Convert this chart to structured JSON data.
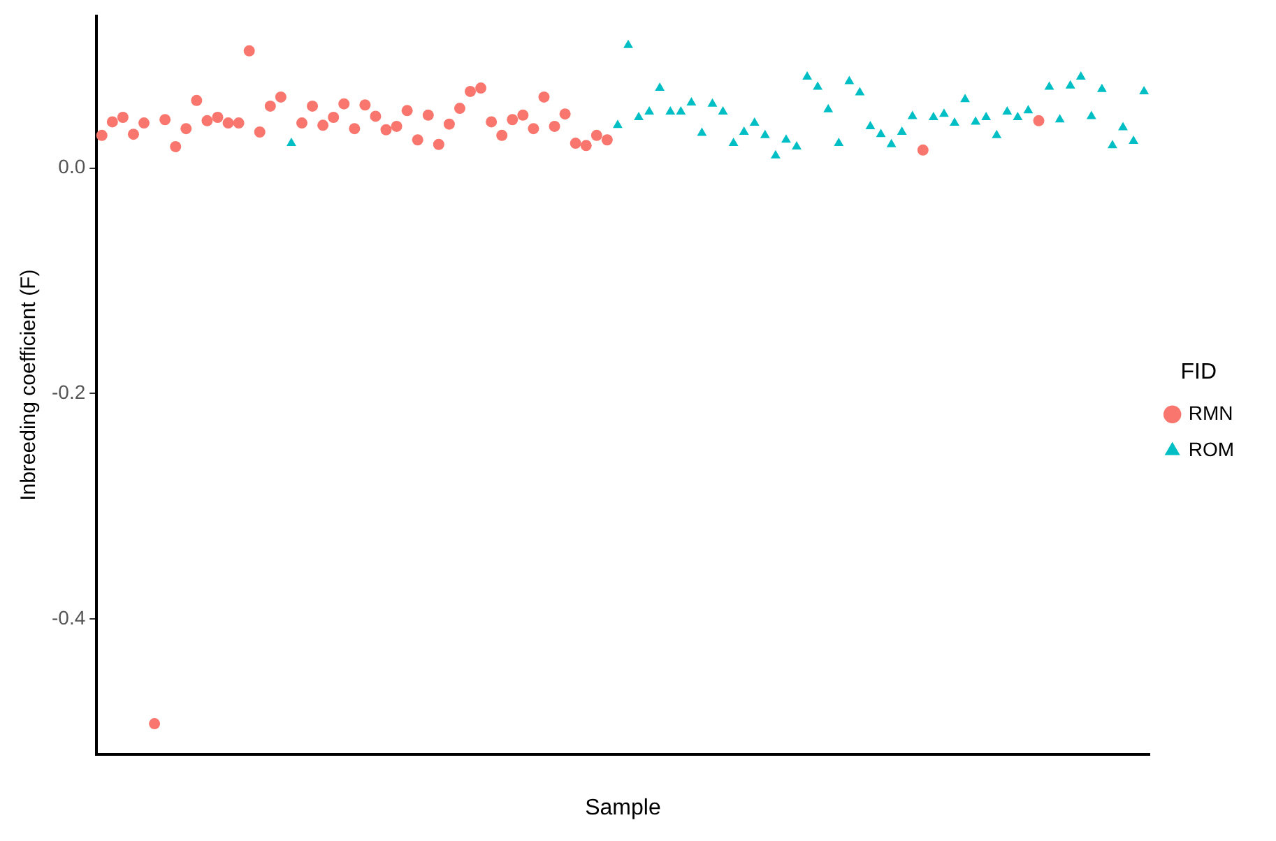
{
  "chart_data": {
    "type": "scatter",
    "xlabel": "Sample",
    "ylabel": "Inbreeding coefficient (F)",
    "legend_title": "FID",
    "legend": "right",
    "grid": false,
    "tick_labels": "y",
    "categories": [
      null,
      null,
      null,
      null,
      null,
      null,
      null,
      null,
      null,
      null,
      null,
      null,
      null,
      null,
      null,
      null,
      null,
      null,
      null,
      null,
      null,
      null,
      null,
      null,
      null,
      null,
      null,
      null,
      null,
      null,
      null,
      null,
      null,
      null,
      null,
      null,
      null,
      null,
      null,
      null,
      null,
      null,
      null,
      null,
      null,
      null,
      null,
      null,
      null,
      null,
      null,
      null,
      null,
      null,
      null,
      null,
      null,
      null,
      null,
      null,
      null,
      null,
      null,
      null,
      null,
      null,
      null,
      null,
      null,
      null,
      null,
      null,
      null,
      null,
      null,
      null,
      null,
      null,
      null,
      null,
      null,
      null,
      null,
      null,
      null,
      null,
      null,
      null,
      null,
      null,
      null,
      null,
      null,
      null,
      null,
      null,
      null,
      null,
      null,
      null
    ],
    "ylim": [
      -0.52,
      0.135
    ],
    "yticks": [
      {
        "value": -0.4,
        "label": "-0.4"
      },
      {
        "value": -0.2,
        "label": "-0.2"
      },
      {
        "value": 0,
        "label": "0.0"
      }
    ],
    "series": [
      {
        "name": "RMN",
        "color": "#f8766d",
        "marker": "circle",
        "values": [
          0.029,
          0.041,
          0.045,
          0.03,
          0.04,
          -0.493,
          0.043,
          0.019,
          0.035,
          0.06,
          0.042,
          0.045,
          0.04,
          0.04,
          0.104,
          0.032,
          0.055,
          0.063,
          null,
          0.04,
          0.055,
          0.038,
          0.045,
          0.057,
          0.035,
          0.056,
          0.046,
          0.034,
          0.037,
          0.051,
          0.025,
          0.047,
          0.021,
          0.039,
          0.053,
          0.068,
          0.071,
          0.041,
          0.029,
          0.043,
          0.047,
          0.035,
          0.063,
          0.037,
          0.048,
          0.022,
          0.02,
          0.029,
          0.025,
          null,
          null,
          null,
          null,
          null,
          null,
          null,
          null,
          null,
          null,
          null,
          null,
          null,
          null,
          null,
          null,
          null,
          null,
          null,
          null,
          null,
          null,
          null,
          null,
          null,
          null,
          null,
          null,
          null,
          0.016,
          null,
          null,
          null,
          null,
          null,
          null,
          null,
          null,
          null,
          null,
          0.042,
          null,
          null,
          null,
          null,
          null,
          null,
          null,
          null,
          null,
          null
        ]
      },
      {
        "name": "ROM",
        "color": "#00bfc4",
        "marker": "triangle",
        "values": [
          null,
          null,
          null,
          null,
          null,
          null,
          null,
          null,
          null,
          null,
          null,
          null,
          null,
          null,
          null,
          null,
          null,
          null,
          0.022,
          null,
          null,
          null,
          null,
          null,
          null,
          null,
          null,
          null,
          null,
          null,
          null,
          null,
          null,
          null,
          null,
          null,
          null,
          null,
          null,
          null,
          null,
          null,
          null,
          null,
          null,
          null,
          null,
          null,
          null,
          0.038,
          0.109,
          0.045,
          0.05,
          0.071,
          0.05,
          0.05,
          0.058,
          0.031,
          0.057,
          0.05,
          0.022,
          0.032,
          0.04,
          0.029,
          0.011,
          0.025,
          0.019,
          0.081,
          0.072,
          0.052,
          0.022,
          0.077,
          0.067,
          0.037,
          0.03,
          0.021,
          0.032,
          0.046,
          null,
          0.045,
          0.048,
          0.04,
          0.061,
          0.041,
          0.045,
          0.029,
          0.05,
          0.045,
          0.051,
          null,
          0.072,
          0.043,
          0.073,
          0.081,
          0.046,
          0.07,
          0.02,
          0.036,
          0.024,
          0.068
        ]
      }
    ]
  }
}
